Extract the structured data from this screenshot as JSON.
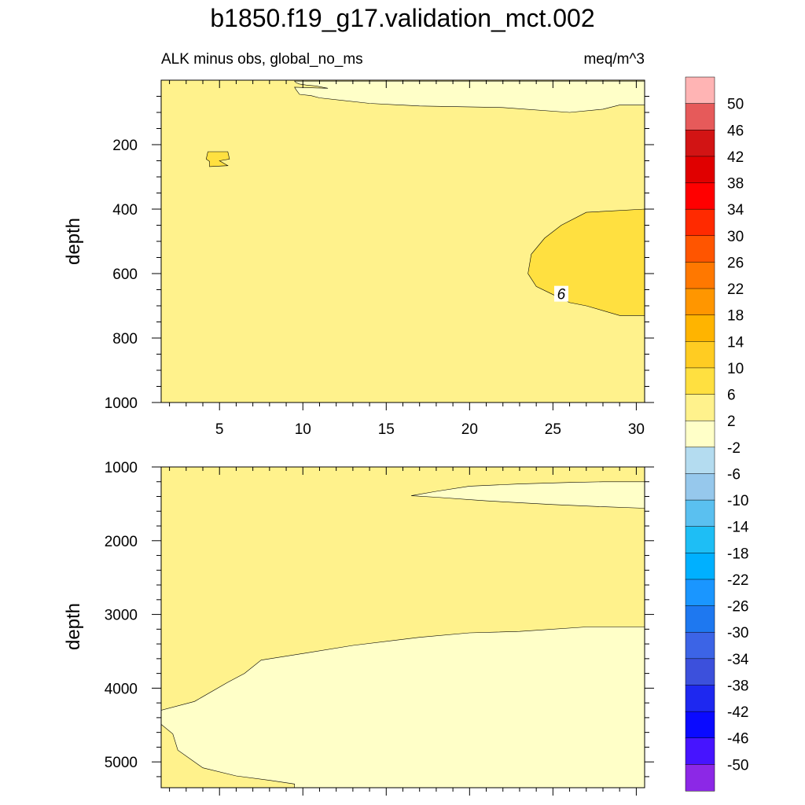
{
  "chart_data": [
    {
      "type": "contour",
      "title": "b1850.f19_g17.validation_mct.002",
      "subtitle_left": "ALK minus obs, global_no_ms",
      "subtitle_right": "meq/m^3",
      "xlabel": "",
      "ylabel": "depth",
      "xlim": [
        1.5,
        30.5
      ],
      "ylim": [
        1000,
        0
      ],
      "x_ticks": [
        5,
        10,
        15,
        20,
        25,
        30
      ],
      "y_ticks": [
        200,
        400,
        600,
        800,
        1000
      ],
      "contour_labels": [
        {
          "text": "6",
          "x": 25.5,
          "y": 665
        }
      ],
      "regions": [
        {
          "value_range": "2 to 6",
          "description": "background field"
        },
        {
          "value_range": "-2 to 2",
          "description": "near-surface band, x 9.5-30.5, depth 5-90"
        },
        {
          "value_range": "6 to 10",
          "description": "lens at x 23.5-30.5, depth 400-730"
        },
        {
          "value_range": "6 to 10",
          "description": "small patch near x 5, depth 230-265"
        }
      ]
    },
    {
      "type": "contour",
      "xlabel": "",
      "ylabel": "depth",
      "xlim": [
        1.5,
        30.5
      ],
      "ylim": [
        5350,
        1000
      ],
      "y_ticks": [
        1000,
        2000,
        3000,
        4000,
        5000
      ],
      "regions": [
        {
          "value_range": "2 to 6",
          "description": "background field"
        },
        {
          "value_range": "-2 to 2",
          "description": "wedge at x 16.5-30.5, depth 1200-1560"
        },
        {
          "value_range": "-2 to 2",
          "description": "deep water, x 1.5-30.5, depth 3170-5350"
        }
      ]
    }
  ],
  "colorbar": {
    "levels": [
      "50",
      "46",
      "42",
      "38",
      "34",
      "30",
      "26",
      "22",
      "18",
      "14",
      "10",
      "6",
      "2",
      "-2",
      "-6",
      "-10",
      "-14",
      "-18",
      "-22",
      "-26",
      "-30",
      "-34",
      "-38",
      "-42",
      "-46",
      "-50"
    ],
    "colors": [
      "#ffb4b4",
      "#e65a5a",
      "#d21414",
      "#e00000",
      "#ff0000",
      "#ff2a00",
      "#ff5500",
      "#ff7800",
      "#ff9600",
      "#ffb400",
      "#ffcc22",
      "#ffe040",
      "#fff28c",
      "#ffffc8",
      "#b4dcf0",
      "#96c8ec",
      "#5ac0f0",
      "#1ebef5",
      "#00b0ff",
      "#1a96ff",
      "#1e78f0",
      "#3c64e6",
      "#3c50dc",
      "#1e28f0",
      "#0a0aff",
      "#4614ff",
      "#8c28e6"
    ]
  }
}
